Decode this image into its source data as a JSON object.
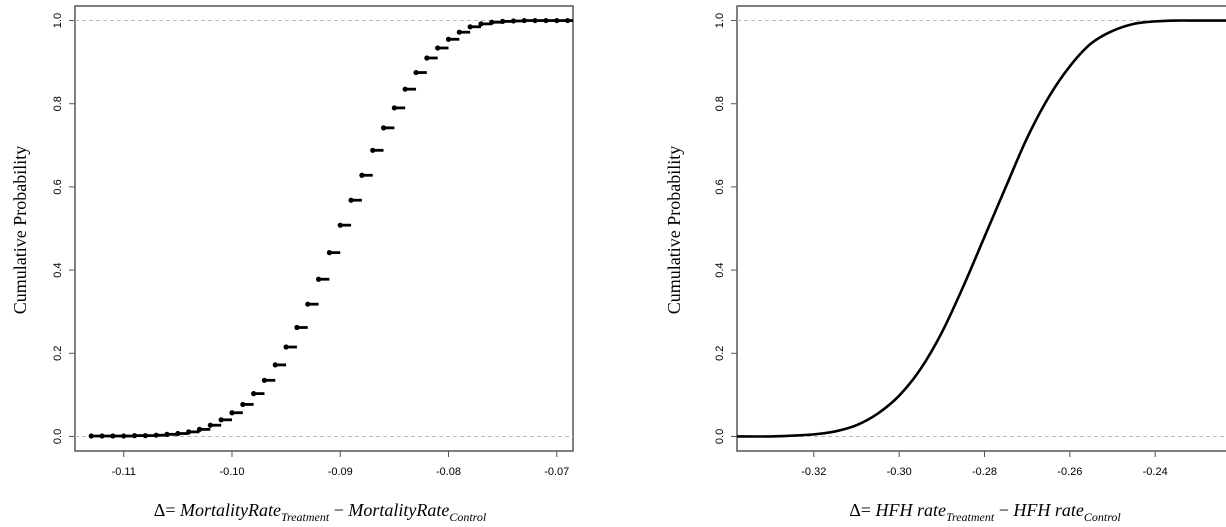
{
  "chart_data": [
    {
      "type": "line",
      "style": "step-points",
      "ylabel": "Cumulative Probability",
      "xlabel": {
        "prefix": "Δ=",
        "term1": "MortalityRate",
        "sub1": "Treatment",
        "op": "−",
        "term2": "MortalityRate",
        "sub2": "Control"
      },
      "xlim": [
        -0.1145,
        -0.0685
      ],
      "ylim": [
        -0.035,
        1.035
      ],
      "xticks": [
        -0.11,
        -0.1,
        -0.09,
        -0.08,
        -0.07
      ],
      "xtick_labels": [
        "-0.11",
        "-0.10",
        "-0.09",
        "-0.08",
        "-0.07"
      ],
      "yticks": [
        0,
        0.2,
        0.4,
        0.6,
        0.8,
        1.0
      ],
      "ytick_labels": [
        "0.0",
        "0.2",
        "0.4",
        "0.6",
        "0.8",
        "1.0"
      ],
      "reference_lines_y": [
        0,
        1
      ],
      "step": 0.001,
      "x": [
        -0.113,
        -0.112,
        -0.111,
        -0.11,
        -0.109,
        -0.108,
        -0.107,
        -0.106,
        -0.105,
        -0.104,
        -0.103,
        -0.102,
        -0.101,
        -0.1,
        -0.099,
        -0.098,
        -0.097,
        -0.096,
        -0.095,
        -0.094,
        -0.093,
        -0.092,
        -0.091,
        -0.09,
        -0.089,
        -0.088,
        -0.087,
        -0.086,
        -0.085,
        -0.084,
        -0.083,
        -0.082,
        -0.081,
        -0.08,
        -0.079,
        -0.078,
        -0.077,
        -0.076,
        -0.075,
        -0.074,
        -0.073,
        -0.072,
        -0.071,
        -0.07,
        -0.069
      ],
      "y": [
        0.001,
        0.001,
        0.001,
        0.001,
        0.002,
        0.002,
        0.003,
        0.005,
        0.007,
        0.011,
        0.017,
        0.027,
        0.04,
        0.057,
        0.077,
        0.103,
        0.135,
        0.172,
        0.215,
        0.262,
        0.318,
        0.378,
        0.442,
        0.508,
        0.568,
        0.628,
        0.688,
        0.742,
        0.79,
        0.835,
        0.875,
        0.91,
        0.934,
        0.955,
        0.972,
        0.985,
        0.992,
        0.996,
        0.998,
        0.999,
        1.0,
        1.0,
        1.0,
        1.0,
        1.0
      ]
    },
    {
      "type": "line",
      "ylabel": "Cumulative Probability",
      "xlabel": {
        "prefix": "Δ=",
        "term1": "HFH rate",
        "sub1": "Treatment",
        "op": "−",
        "term2": "HFH rate",
        "sub2": "Control"
      },
      "xlim": [
        -0.338,
        -0.222
      ],
      "ylim": [
        -0.035,
        1.035
      ],
      "xticks": [
        -0.32,
        -0.3,
        -0.28,
        -0.26,
        -0.24
      ],
      "xtick_labels": [
        "-0.32",
        "-0.30",
        "-0.28",
        "-0.26",
        "-0.24"
      ],
      "yticks": [
        0,
        0.2,
        0.4,
        0.6,
        0.8,
        1.0
      ],
      "ytick_labels": [
        "0.0",
        "0.2",
        "0.4",
        "0.6",
        "0.8",
        "1.0"
      ],
      "reference_lines_y": [
        0,
        1
      ],
      "x": [
        -0.338,
        -0.33,
        -0.325,
        -0.32,
        -0.315,
        -0.31,
        -0.305,
        -0.3,
        -0.295,
        -0.29,
        -0.285,
        -0.28,
        -0.275,
        -0.27,
        -0.265,
        -0.26,
        -0.255,
        -0.25,
        -0.245,
        -0.24,
        -0.235,
        -0.23,
        -0.222
      ],
      "y": [
        0.0,
        0.0,
        0.002,
        0.005,
        0.012,
        0.027,
        0.055,
        0.098,
        0.162,
        0.25,
        0.36,
        0.48,
        0.6,
        0.718,
        0.815,
        0.89,
        0.945,
        0.975,
        0.992,
        0.998,
        1.0,
        1.0,
        1.0
      ]
    }
  ]
}
